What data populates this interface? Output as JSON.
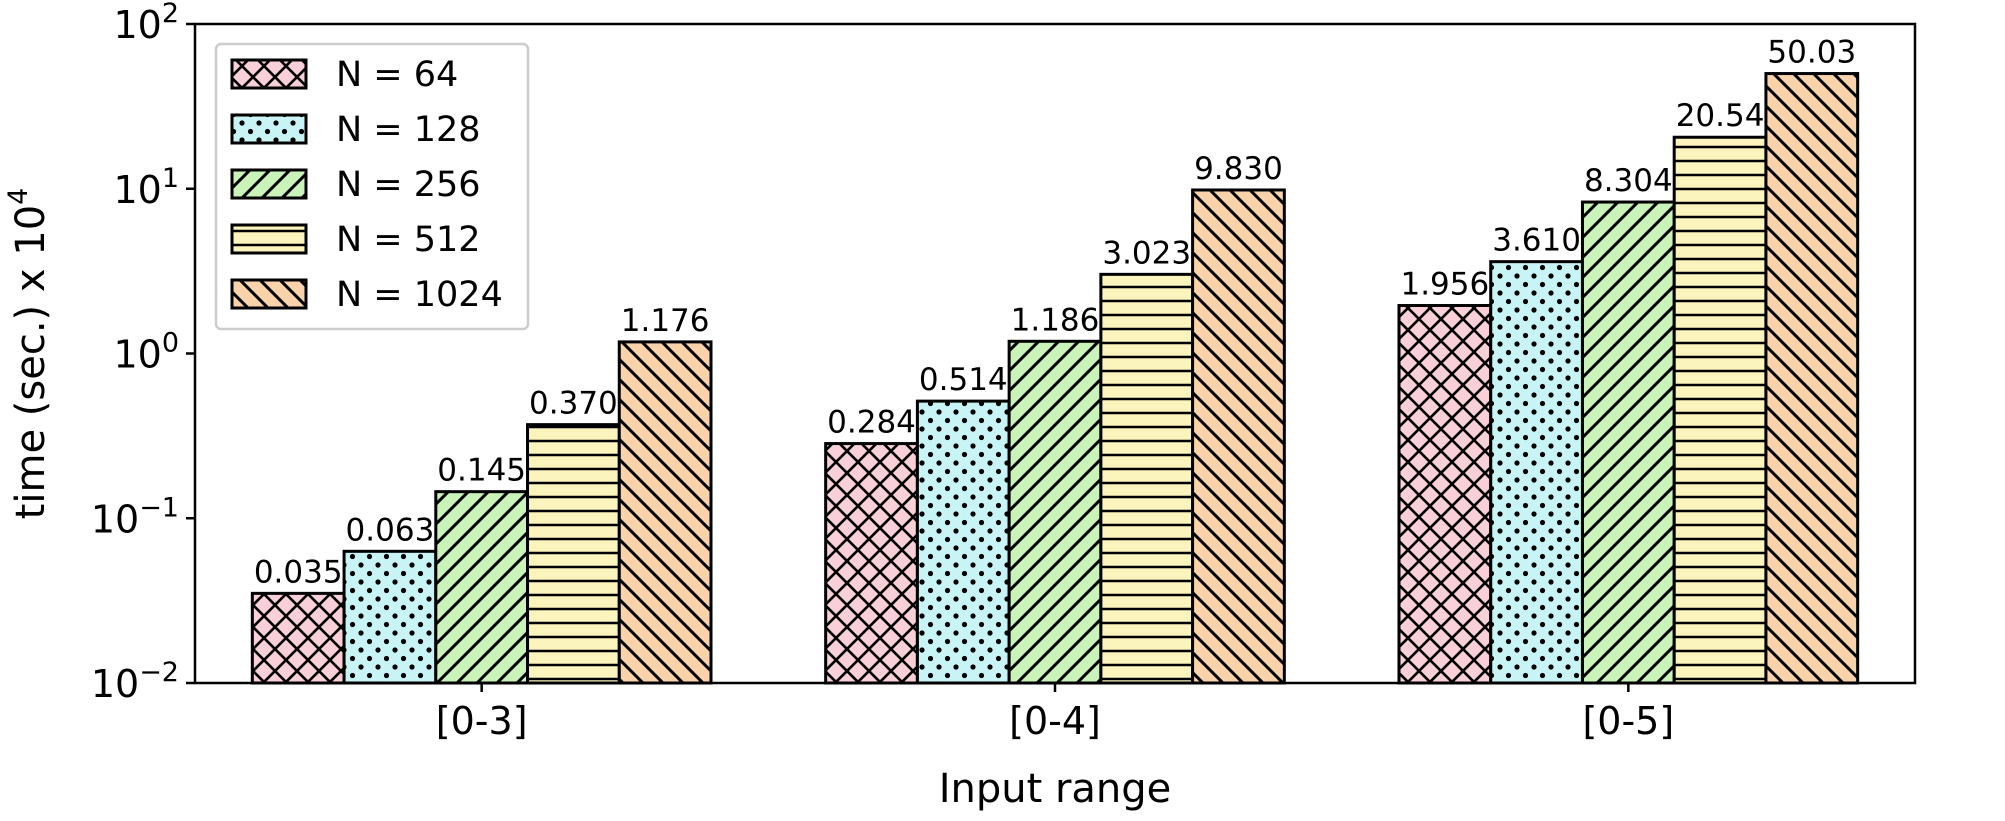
{
  "chart_data": {
    "type": "bar",
    "title": "",
    "xlabel": "Input range",
    "ylabel": "time (sec.) x 10",
    "ylabel_exponent": "4",
    "yscale": "log",
    "ylim": [
      0.01,
      100
    ],
    "yticks": [
      {
        "value": 0.01,
        "base": "10",
        "exp": "−2"
      },
      {
        "value": 0.1,
        "base": "10",
        "exp": "−1"
      },
      {
        "value": 1,
        "base": "10",
        "exp": "0"
      },
      {
        "value": 10,
        "base": "10",
        "exp": "1"
      },
      {
        "value": 100,
        "base": "10",
        "exp": "2"
      }
    ],
    "categories": [
      "[0-3]",
      "[0-4]",
      "[0-5]"
    ],
    "series": [
      {
        "name": "N = 64",
        "color": "#f9cfd8",
        "hatch": "crosshatch",
        "values": [
          0.035,
          0.284,
          1.956
        ],
        "labels": [
          "0.035",
          "0.284",
          "1.956"
        ]
      },
      {
        "name": "N = 128",
        "color": "#c8f4f5",
        "hatch": "dots",
        "values": [
          0.063,
          0.514,
          3.61
        ],
        "labels": [
          "0.063",
          "0.514",
          "3.610"
        ]
      },
      {
        "name": "N = 256",
        "color": "#c9f3b9",
        "hatch": "forward-diagonal",
        "values": [
          0.145,
          1.186,
          8.304
        ],
        "labels": [
          "0.145",
          "1.186",
          "8.304"
        ]
      },
      {
        "name": "N = 512",
        "color": "#fbf4bd",
        "hatch": "horizontal",
        "values": [
          0.37,
          3.023,
          20.54
        ],
        "labels": [
          "0.370",
          "3.023",
          "20.54"
        ]
      },
      {
        "name": "N = 1024",
        "color": "#fad3ab",
        "hatch": "back-diagonal",
        "values": [
          1.176,
          9.83,
          50.03
        ],
        "labels": [
          "1.176",
          "9.830",
          "50.03"
        ]
      }
    ],
    "legend_position": "top-left",
    "grid": false
  }
}
